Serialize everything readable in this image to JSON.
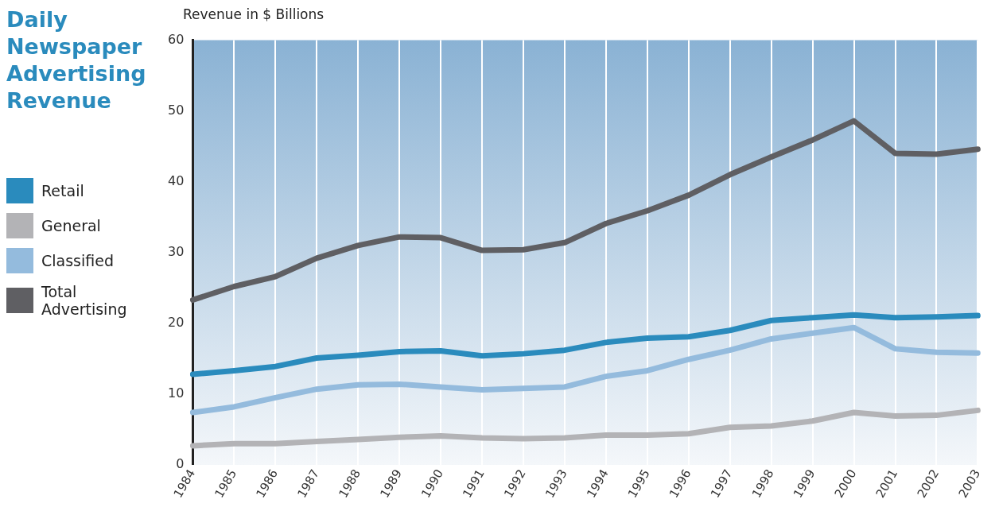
{
  "chart_data": {
    "type": "line",
    "title": "Daily Newspaper Advertising Revenue",
    "ylabel": "Revenue in $ Billions",
    "categories": [
      "1984",
      "1985",
      "1986",
      "1987",
      "1988",
      "1989",
      "1990",
      "1991",
      "1992",
      "1993",
      "1994",
      "1995",
      "1996",
      "1997",
      "1998",
      "1999",
      "2000",
      "2001",
      "2002",
      "2003"
    ],
    "series": [
      {
        "name": "Retail",
        "color": "#2a8bbd",
        "values": [
          12.8,
          13.3,
          13.9,
          15.1,
          15.5,
          16.0,
          16.1,
          15.4,
          15.7,
          16.2,
          17.3,
          17.9,
          18.1,
          19.0,
          20.4,
          20.8,
          21.2,
          20.8,
          20.9,
          21.1
        ]
      },
      {
        "name": "General",
        "color": "#b3b3b6",
        "values": [
          2.7,
          3.0,
          3.0,
          3.3,
          3.6,
          3.9,
          4.1,
          3.8,
          3.7,
          3.8,
          4.2,
          4.2,
          4.4,
          5.3,
          5.5,
          6.2,
          7.4,
          6.9,
          7.0,
          7.7
        ]
      },
      {
        "name": "Classified",
        "color": "#94bbdd",
        "values": [
          7.4,
          8.2,
          9.5,
          10.7,
          11.3,
          11.4,
          11.0,
          10.6,
          10.8,
          11.0,
          12.5,
          13.3,
          14.9,
          16.2,
          17.8,
          18.6,
          19.4,
          16.4,
          15.9,
          15.8
        ]
      },
      {
        "name": "Total Advertising",
        "color": "#5f5f63",
        "values": [
          23.3,
          25.2,
          26.6,
          29.2,
          31.0,
          32.2,
          32.1,
          30.3,
          30.4,
          31.4,
          34.1,
          35.9,
          38.1,
          41.0,
          43.5,
          45.9,
          48.6,
          44.0,
          43.9,
          44.6
        ]
      }
    ],
    "ylim": [
      0,
      60
    ],
    "yticks": [
      0,
      10,
      20,
      30,
      40,
      50,
      60
    ],
    "grid": "x",
    "legend": "left",
    "marker": "none",
    "line_style": "solid"
  }
}
